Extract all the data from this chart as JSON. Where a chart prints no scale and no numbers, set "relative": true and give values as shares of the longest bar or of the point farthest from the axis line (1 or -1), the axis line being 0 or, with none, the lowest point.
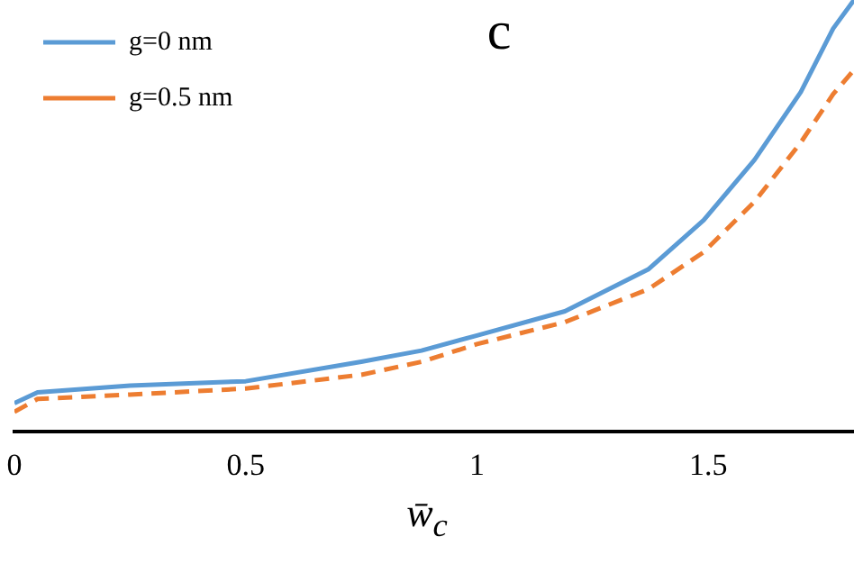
{
  "chart_data": {
    "type": "line",
    "relative": true,
    "xlabel": "w̄$_{c}$",
    "annotations": [
      "c"
    ],
    "xlim": [
      0,
      1.815
    ],
    "xticks": [
      0,
      0.5,
      1,
      1.5
    ],
    "legend": "top left",
    "grid": false,
    "series": [
      {
        "name": "g=0 nm",
        "color": "#5b9bd5",
        "line_style": "solid",
        "x": [
          0,
          0.05,
          0.25,
          0.5,
          0.75,
          0.88,
          1.0,
          1.19,
          1.37,
          1.49,
          1.6,
          1.7,
          1.77,
          1.815
        ],
        "values": [
          0.066,
          0.091,
          0.107,
          0.117,
          0.162,
          0.188,
          0.223,
          0.279,
          0.376,
          0.49,
          0.63,
          0.787,
          0.934,
          1.0
        ]
      },
      {
        "name": "g=0.5 nm",
        "color": "#ed7d31",
        "line_style": "dashed",
        "x": [
          0,
          0.05,
          0.25,
          0.5,
          0.75,
          0.88,
          1.0,
          1.19,
          1.37,
          1.49,
          1.6,
          1.7,
          1.77,
          1.815
        ],
        "values": [
          0.046,
          0.076,
          0.086,
          0.1,
          0.132,
          0.162,
          0.203,
          0.254,
          0.33,
          0.416,
          0.533,
          0.67,
          0.782,
          0.838
        ]
      }
    ]
  }
}
